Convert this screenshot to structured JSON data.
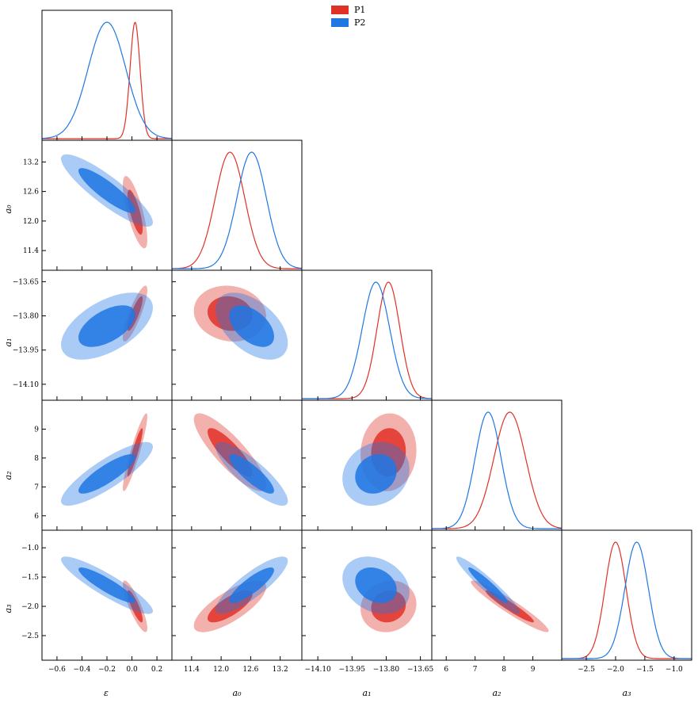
{
  "chart_data": {
    "type": "corner",
    "parameters": [
      "ε",
      "a0",
      "a1",
      "a2",
      "a3"
    ],
    "axis_labels": [
      "ε",
      "a₀",
      "a₁",
      "a₂",
      "a₃"
    ],
    "ranges": [
      [
        -0.72,
        0.32
      ],
      [
        11.0,
        13.64
      ],
      [
        -14.17,
        -13.6
      ],
      [
        5.5,
        10.0
      ],
      [
        -2.92,
        -0.7
      ]
    ],
    "ticks": [
      {
        "values": [
          -0.6,
          -0.4,
          -0.2,
          0.0,
          0.2
        ],
        "labels": [
          "−0.6",
          "−0.4",
          "−0.2",
          "0.0",
          "0.2"
        ]
      },
      {
        "values": [
          11.4,
          12.0,
          12.6,
          13.2
        ],
        "labels": [
          "11.4",
          "12.0",
          "12.6",
          "13.2"
        ]
      },
      {
        "values": [
          -14.1,
          -13.95,
          -13.8,
          -13.65
        ],
        "labels": [
          "−14.10",
          "−13.95",
          "−13.80",
          "−13.65"
        ]
      },
      {
        "values": [
          6,
          7,
          8,
          9
        ],
        "labels": [
          "6",
          "7",
          "8",
          "9"
        ]
      },
      {
        "values": [
          -2.5,
          -2.0,
          -1.5,
          -1.0
        ],
        "labels": [
          "−2.5",
          "−2.0",
          "−1.5",
          "−1.0"
        ]
      }
    ],
    "series": [
      {
        "name": "P1",
        "color": "#e03127",
        "mean": [
          0.025,
          12.18,
          -13.79,
          8.2,
          -2.0
        ],
        "sigma": [
          0.04,
          0.3,
          0.05,
          0.55,
          0.18
        ],
        "corr": [
          [
            1.0,
            -0.75,
            0.85,
            0.92,
            -0.85
          ],
          [
            -0.75,
            1.0,
            -0.1,
            -0.85,
            0.75
          ],
          [
            0.85,
            -0.1,
            1.0,
            0.05,
            0.1
          ],
          [
            0.92,
            -0.85,
            0.05,
            1.0,
            -0.95
          ],
          [
            -0.85,
            0.75,
            0.1,
            -0.95,
            1.0
          ]
        ]
      },
      {
        "name": "P2",
        "color": "#1f77e4",
        "mean": [
          -0.2,
          12.62,
          -13.845,
          7.45,
          -1.64
        ],
        "sigma": [
          0.15,
          0.3,
          0.06,
          0.45,
          0.2
        ],
        "corr": [
          [
            1.0,
            -0.88,
            0.55,
            0.85,
            -0.9
          ],
          [
            -0.88,
            1.0,
            -0.5,
            -0.85,
            0.85
          ],
          [
            0.55,
            -0.5,
            1.0,
            0.15,
            -0.25
          ],
          [
            0.85,
            -0.85,
            0.15,
            1.0,
            -0.95
          ],
          [
            -0.9,
            0.85,
            -0.25,
            -0.95,
            1.0
          ]
        ]
      }
    ],
    "contour_levels": [
      "68%",
      "95%"
    ],
    "legend": {
      "position": "top-center",
      "entries": [
        "P1",
        "P2"
      ]
    }
  }
}
